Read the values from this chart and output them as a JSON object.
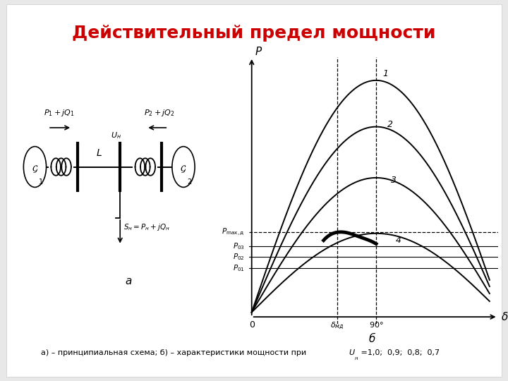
{
  "title": "Действительный предел мощности",
  "title_color": "#cc0000",
  "title_fontsize": 18,
  "bg_color": "#e8e8e8",
  "slide_bg": "#ffffff",
  "caption": "а) – принципиальная схема; б) – характеристики мощности при",
  "caption_u": "U",
  "caption_sub": "н",
  "caption_vals": " =1,0;  0,9;  0,8;  0,7",
  "amplitudes": [
    1.0,
    0.8,
    0.58,
    0.34
  ],
  "horizontal_lines": [
    0.345,
    0.285,
    0.24,
    0.19
  ],
  "delta_md": 62,
  "delta_90": 90
}
